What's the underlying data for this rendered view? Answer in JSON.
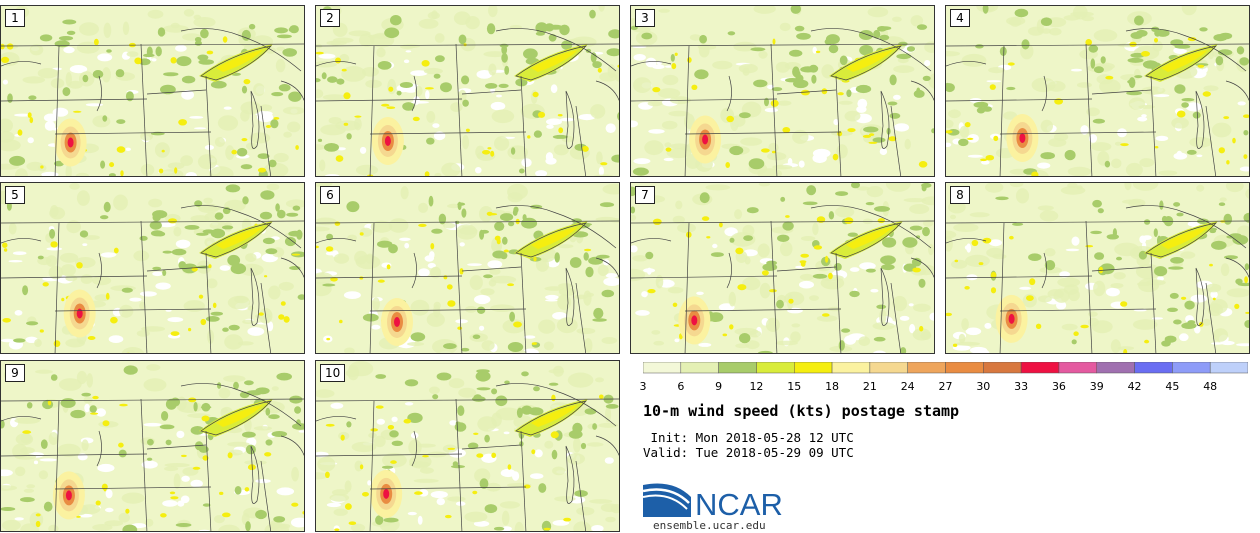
{
  "panels": [
    "1",
    "2",
    "3",
    "4",
    "5",
    "6",
    "7",
    "8",
    "9",
    "10"
  ],
  "colorbar": {
    "ticks": [
      "3",
      "6",
      "9",
      "12",
      "15",
      "18",
      "21",
      "24",
      "27",
      "30",
      "33",
      "36",
      "39",
      "42",
      "45",
      "48"
    ],
    "colors": [
      "#f3f8d8",
      "#e4f0b4",
      "#a8cc6a",
      "#d9ec3a",
      "#f5ee10",
      "#fbf2a0",
      "#f5d890",
      "#eea55c",
      "#e98c42",
      "#d8783f",
      "#ee1142",
      "#e45aa0",
      "#a070b0",
      "#6a6ef2",
      "#8e9cf8",
      "#bed0fa"
    ]
  },
  "title": "10-m wind speed (kts) postage stamp",
  "init_line": " Init: Mon 2018-05-28 12 UTC",
  "valid_line": "Valid: Tue 2018-05-29 09 UTC",
  "logo": {
    "text": "NCAR",
    "url": "ensemble.ucar.edu"
  },
  "colors": {
    "map_background": "#eef6c8",
    "boundary": "#444444",
    "logo_blue": "#1d5fa8"
  }
}
